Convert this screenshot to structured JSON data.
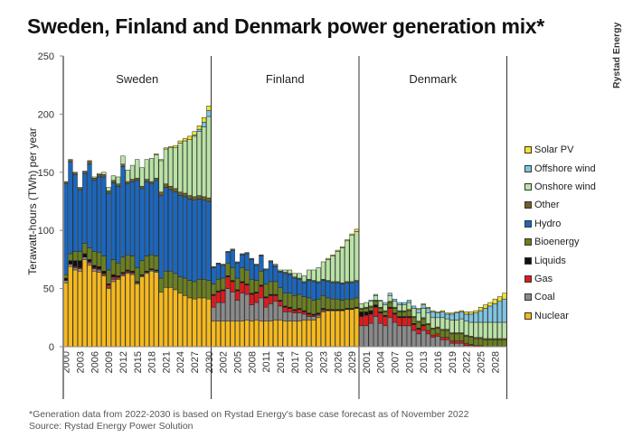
{
  "title": "Sweden, Finland and Denmark power generation mix*",
  "logo": "Rystad Energy",
  "footnote": "*Generation data from 2022-2030  is based on Rystad Energy's base case forecast as of November 2022",
  "source": "Source: Rystad Energy Power Solution",
  "chart_data": {
    "type": "bar",
    "stacked": true,
    "title": "Sweden, Finland and Denmark power generation mix*",
    "ylabel": "Terawatt-hours (TWh) per year",
    "ylim": [
      0,
      250
    ],
    "yticks": [
      0,
      50,
      100,
      150,
      200,
      250
    ],
    "grid": false,
    "legend_position": "right",
    "years": [
      2000,
      2001,
      2002,
      2003,
      2004,
      2005,
      2006,
      2007,
      2008,
      2009,
      2010,
      2011,
      2012,
      2013,
      2014,
      2015,
      2016,
      2017,
      2018,
      2019,
      2020,
      2021,
      2022,
      2023,
      2024,
      2025,
      2026,
      2027,
      2028,
      2029,
      2030
    ],
    "legend": [
      {
        "key": "solar",
        "label": "Solar PV",
        "color": "#f2e22c"
      },
      {
        "key": "offshore",
        "label": "Offshore wind",
        "color": "#7fc4e3"
      },
      {
        "key": "onshore",
        "label": "Onshore wind",
        "color": "#b9e3a6"
      },
      {
        "key": "other",
        "label": "Other",
        "color": "#6e6226"
      },
      {
        "key": "hydro",
        "label": "Hydro",
        "color": "#1a67bf"
      },
      {
        "key": "bio",
        "label": "Bioenergy",
        "color": "#6a7f1f"
      },
      {
        "key": "liquids",
        "label": "Liquids",
        "color": "#111111"
      },
      {
        "key": "gas",
        "label": "Gas",
        "color": "#e0191b"
      },
      {
        "key": "coal",
        "label": "Coal",
        "color": "#8a8a8a"
      },
      {
        "key": "nuclear",
        "label": "Nuclear",
        "color": "#f6b91c"
      }
    ],
    "panels": [
      {
        "name": "Sweden",
        "xticks": [
          "2000",
          "2003",
          "2006",
          "2009",
          "2012",
          "2015",
          "2018",
          "2021",
          "2024",
          "2027",
          "2030"
        ],
        "series": {
          "nuclear": [
            55,
            69,
            66,
            65,
            75,
            70,
            65,
            64,
            61,
            50,
            56,
            58,
            61,
            63,
            62,
            54,
            60,
            63,
            65,
            64,
            47,
            51,
            51,
            49,
            46,
            44,
            42,
            41,
            42,
            42,
            41
          ],
          "coal": [
            2,
            2,
            2,
            2,
            2,
            2,
            2,
            2,
            1,
            1,
            2,
            1,
            1,
            1,
            1,
            1,
            1,
            1,
            1,
            1,
            0,
            0,
            0,
            0,
            0,
            0,
            0,
            0,
            0,
            0,
            0
          ],
          "gas": [
            0,
            0,
            1,
            1,
            0,
            1,
            1,
            1,
            1,
            2,
            2,
            1,
            1,
            1,
            1,
            0,
            0,
            0,
            0,
            0,
            0,
            0,
            0,
            0,
            0,
            0,
            0,
            0,
            0,
            0,
            0
          ],
          "liquids": [
            2,
            3,
            5,
            6,
            3,
            2,
            2,
            2,
            2,
            1,
            2,
            1,
            1,
            1,
            1,
            1,
            1,
            1,
            1,
            1,
            0,
            0,
            0,
            0,
            0,
            0,
            0,
            0,
            0,
            0,
            0
          ],
          "bio": [
            3,
            6,
            8,
            8,
            9,
            10,
            12,
            12,
            13,
            12,
            13,
            11,
            13,
            13,
            13,
            12,
            12,
            13,
            12,
            12,
            12,
            14,
            14,
            14,
            14,
            15,
            15,
            15,
            16,
            16,
            16
          ],
          "hydro": [
            78,
            79,
            66,
            53,
            60,
            72,
            61,
            65,
            68,
            66,
            66,
            66,
            78,
            61,
            64,
            75,
            62,
            64,
            61,
            65,
            71,
            72,
            70,
            70,
            70,
            70,
            70,
            70,
            69,
            68,
            68
          ],
          "other": [
            2,
            2,
            2,
            2,
            2,
            3,
            2,
            2,
            2,
            2,
            2,
            2,
            2,
            2,
            2,
            2,
            2,
            2,
            2,
            2,
            3,
            3,
            3,
            3,
            3,
            3,
            3,
            3,
            3,
            3,
            3
          ],
          "onshore": [
            0,
            0,
            0,
            0,
            0,
            0,
            1,
            1,
            2,
            3,
            4,
            6,
            7,
            10,
            12,
            16,
            16,
            17,
            20,
            20,
            27,
            30,
            33,
            35,
            42,
            45,
            48,
            52,
            55,
            60,
            70
          ],
          "offshore": [
            0,
            0,
            0,
            0,
            0,
            0,
            0,
            0,
            0,
            0,
            0,
            0,
            0,
            0,
            0,
            0,
            0,
            0,
            0,
            0,
            0,
            0,
            0,
            0,
            0,
            0,
            0,
            1,
            2,
            4,
            5
          ],
          "solar": [
            0,
            0,
            0,
            0,
            0,
            0,
            0,
            0,
            0,
            0,
            0,
            0,
            0,
            0,
            0,
            0,
            0,
            0,
            0,
            1,
            1,
            1,
            1,
            2,
            2,
            2,
            3,
            3,
            3,
            4,
            4
          ]
        }
      },
      {
        "name": "Finland",
        "xticks": [
          "2002",
          "2005",
          "2008",
          "2011",
          "2014",
          "2017",
          "2020",
          "2023",
          "2026",
          "2029"
        ],
        "series": {
          "nuclear": [
            22,
            22,
            22,
            22,
            22,
            22,
            22,
            23,
            22,
            23,
            22,
            22,
            22,
            23,
            23,
            22,
            22,
            22,
            22,
            23,
            23,
            23,
            25,
            30,
            31,
            31,
            31,
            31,
            32,
            32,
            33
          ],
          "coal": [
            12,
            16,
            16,
            28,
            25,
            18,
            24,
            22,
            14,
            15,
            20,
            12,
            15,
            16,
            12,
            8,
            8,
            7,
            7,
            5,
            3,
            3,
            2,
            1,
            0,
            0,
            0,
            0,
            0,
            0,
            0
          ],
          "gas": [
            10,
            9,
            10,
            10,
            9,
            8,
            9,
            8,
            9,
            8,
            10,
            8,
            7,
            5,
            4,
            4,
            3,
            2,
            3,
            2,
            2,
            1,
            1,
            1,
            0,
            0,
            0,
            0,
            0,
            0,
            0
          ],
          "liquids": [
            1,
            1,
            1,
            1,
            1,
            1,
            1,
            1,
            1,
            1,
            1,
            1,
            1,
            1,
            1,
            1,
            1,
            1,
            1,
            1,
            1,
            1,
            1,
            1,
            1,
            1,
            1,
            1,
            1,
            1,
            1
          ],
          "bio": [
            9,
            10,
            10,
            11,
            11,
            10,
            12,
            12,
            12,
            10,
            12,
            11,
            11,
            11,
            11,
            11,
            12,
            12,
            12,
            12,
            13,
            12,
            12,
            11,
            10,
            9,
            9,
            8,
            8,
            8,
            8
          ],
          "hydro": [
            14,
            13,
            11,
            9,
            15,
            13,
            11,
            14,
            17,
            13,
            13,
            12,
            17,
            13,
            13,
            17,
            16,
            15,
            13,
            12,
            15,
            16,
            14,
            13,
            14,
            14,
            14,
            14,
            14,
            14,
            14
          ],
          "other": [
            1,
            1,
            1,
            1,
            1,
            1,
            1,
            1,
            1,
            1,
            1,
            1,
            1,
            1,
            1,
            1,
            1,
            1,
            1,
            1,
            1,
            1,
            1,
            1,
            1,
            1,
            1,
            1,
            1,
            1,
            1
          ],
          "onshore": [
            0,
            0,
            0,
            0,
            0,
            0,
            0,
            0,
            0,
            0,
            0,
            0,
            0,
            1,
            1,
            2,
            3,
            3,
            4,
            5,
            8,
            9,
            12,
            15,
            18,
            22,
            26,
            30,
            35,
            40,
            42
          ],
          "offshore": [
            0,
            0,
            0,
            0,
            0,
            0,
            0,
            0,
            0,
            0,
            0,
            0,
            0,
            0,
            0,
            0,
            0,
            0,
            0,
            0,
            0,
            0,
            0,
            0,
            0,
            0,
            0,
            0,
            0,
            0,
            0
          ],
          "solar": [
            0,
            0,
            0,
            0,
            0,
            0,
            0,
            0,
            0,
            0,
            0,
            0,
            0,
            0,
            0,
            0,
            0,
            0,
            0,
            0,
            0,
            0,
            0,
            0,
            1,
            1,
            1,
            1,
            1,
            1,
            2
          ]
        }
      },
      {
        "name": "Denmark",
        "xticks": [
          "2001",
          "2004",
          "2007",
          "2010",
          "2013",
          "2016",
          "2019",
          "2022",
          "2025",
          "2028"
        ],
        "series": {
          "nuclear": [
            0,
            0,
            0,
            0,
            0,
            0,
            0,
            0,
            0,
            0,
            0,
            0,
            0,
            0,
            0,
            0,
            0,
            0,
            0,
            0,
            0,
            0,
            0,
            0,
            0,
            0,
            0,
            0,
            0,
            0,
            0
          ],
          "coal": [
            18,
            18,
            20,
            26,
            20,
            18,
            25,
            21,
            18,
            18,
            18,
            14,
            11,
            14,
            11,
            8,
            9,
            6,
            6,
            3,
            3,
            3,
            1,
            1,
            0,
            0,
            0,
            0,
            0,
            0,
            0
          ],
          "gas": [
            8,
            9,
            8,
            8,
            9,
            8,
            8,
            7,
            7,
            7,
            7,
            5,
            4,
            4,
            3,
            2,
            2,
            2,
            2,
            2,
            2,
            2,
            2,
            1,
            1,
            1,
            0,
            0,
            0,
            0,
            0
          ],
          "liquids": [
            4,
            3,
            3,
            2,
            1,
            1,
            1,
            1,
            1,
            1,
            1,
            1,
            1,
            1,
            0,
            0,
            0,
            0,
            0,
            0,
            0,
            0,
            0,
            0,
            0,
            0,
            0,
            0,
            0,
            0,
            0
          ],
          "bio": [
            2,
            3,
            3,
            3,
            3,
            3,
            4,
            4,
            4,
            4,
            5,
            5,
            5,
            5,
            5,
            5,
            5,
            6,
            6,
            6,
            6,
            6,
            6,
            6,
            6,
            6,
            6,
            6,
            6,
            6,
            6
          ],
          "hydro": [
            0,
            0,
            0,
            0,
            0,
            0,
            0,
            0,
            0,
            0,
            0,
            0,
            0,
            0,
            0,
            0,
            0,
            0,
            0,
            0,
            0,
            0,
            0,
            0,
            0,
            0,
            0,
            0,
            0,
            0,
            0
          ],
          "other": [
            1,
            1,
            1,
            1,
            1,
            1,
            1,
            1,
            1,
            1,
            1,
            1,
            1,
            1,
            1,
            1,
            1,
            1,
            1,
            1,
            1,
            1,
            1,
            1,
            1,
            1,
            1,
            1,
            1,
            1,
            1
          ],
          "onshore": [
            4,
            4,
            4,
            4,
            5,
            5,
            5,
            5,
            5,
            5,
            6,
            7,
            7,
            8,
            9,
            9,
            8,
            10,
            9,
            11,
            11,
            12,
            12,
            12,
            13,
            13,
            14,
            14,
            14,
            14,
            14
          ],
          "offshore": [
            0,
            0,
            1,
            1,
            1,
            2,
            2,
            2,
            2,
            2,
            2,
            2,
            3,
            3,
            4,
            5,
            4,
            5,
            4,
            5,
            6,
            6,
            6,
            7,
            8,
            10,
            12,
            14,
            16,
            18,
            20
          ],
          "solar": [
            0,
            0,
            0,
            0,
            0,
            0,
            0,
            0,
            0,
            0,
            0,
            0,
            1,
            1,
            1,
            1,
            1,
            1,
            1,
            1,
            1,
            1,
            2,
            2,
            2,
            3,
            3,
            3,
            4,
            4,
            5
          ]
        }
      }
    ]
  }
}
